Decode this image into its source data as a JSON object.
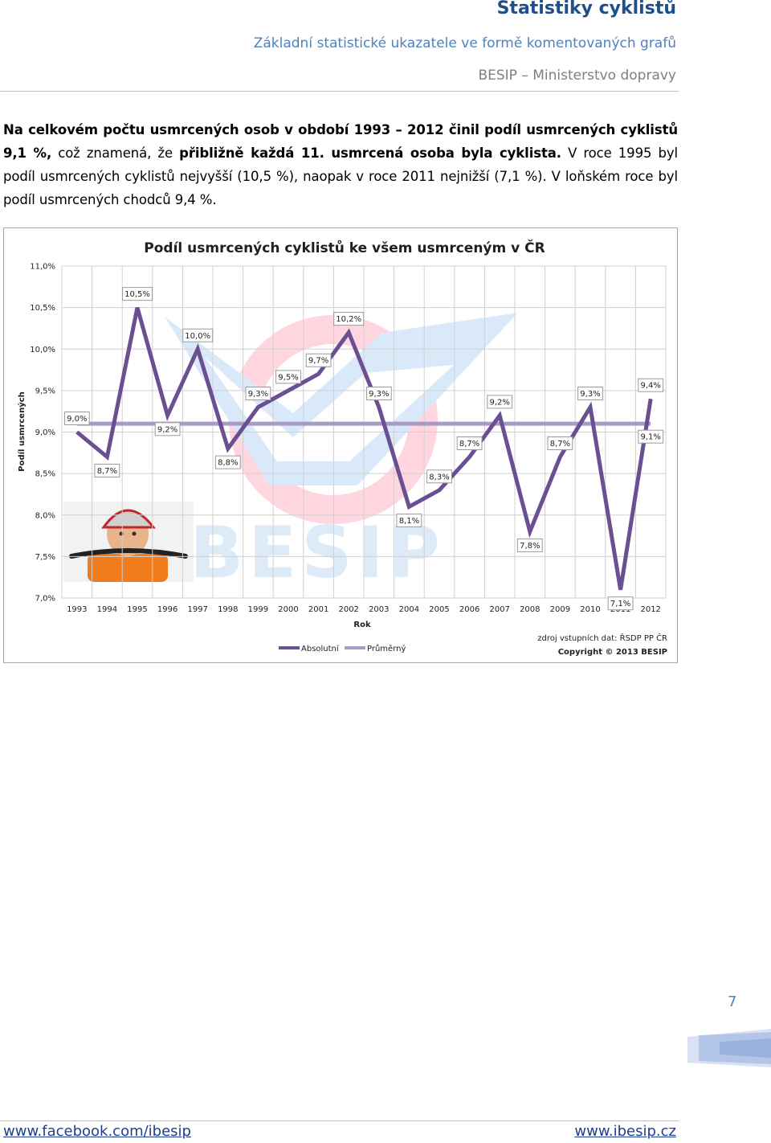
{
  "header": {
    "title": "Statistiky cyklistů",
    "subtitle": "Základní statistické ukazatele ve formě komentovaných grafů",
    "org": "BESIP – Ministerstvo dopravy"
  },
  "intro": {
    "bold_part1": "Na celkovém počtu usmrcených osob v období 1993 – 2012 činil podíl usmrcených cyklistů 9,1 %,",
    "plain_part2": " což znamená, že ",
    "bold_part3": "přibližně každá 11. usmrcená osoba byla cyklista.",
    "plain_part4": " V roce 1995 byl podíl usmrcených cyklistů nejvyšší (10,5 %), naopak v roce 2011 nejnižší (7,1 %). V loňském roce byl podíl usmrcených chodců 9,4 %."
  },
  "chart_data": {
    "type": "line",
    "title": "Podíl usmrcených cyklistů ke všem usmrceným v ČR",
    "xlabel": "Rok",
    "ylabel": "Podíl usmrcených",
    "ylim": [
      7.0,
      11.0
    ],
    "y_ticks": [
      "7,0%",
      "7,5%",
      "8,0%",
      "8,5%",
      "9,0%",
      "9,5%",
      "10,0%",
      "10,5%",
      "11,0%"
    ],
    "grid": true,
    "legend_position": "bottom-left",
    "x": [
      "1993",
      "1994",
      "1995",
      "1996",
      "1997",
      "1998",
      "1999",
      "2000",
      "2001",
      "2002",
      "2003",
      "2004",
      "2005",
      "2006",
      "2007",
      "2008",
      "2009",
      "2010",
      "2011",
      "2012"
    ],
    "series": [
      {
        "name": "Absolutní",
        "color": "#6a4f93",
        "values": [
          9.0,
          8.7,
          10.5,
          9.2,
          10.0,
          8.8,
          9.3,
          9.5,
          9.7,
          10.2,
          9.3,
          8.1,
          8.3,
          8.7,
          9.2,
          7.8,
          8.7,
          9.3,
          7.1,
          9.4
        ],
        "labels": [
          "9,0%",
          "8,7%",
          "10,5%",
          "9,2%",
          "10,0%",
          "8,8%",
          "9,3%",
          "9,5%",
          "9,7%",
          "10,2%",
          "9,3%",
          "8,1%",
          "8,3%",
          "8,7%",
          "9,2%",
          "7,8%",
          "8,7%",
          "9,3%",
          "7,1%",
          "9,4%"
        ]
      },
      {
        "name": "Průměrný",
        "color": "#a79cc5",
        "values": [
          9.1,
          9.1,
          9.1,
          9.1,
          9.1,
          9.1,
          9.1,
          9.1,
          9.1,
          9.1,
          9.1,
          9.1,
          9.1,
          9.1,
          9.1,
          9.1,
          9.1,
          9.1,
          9.1,
          9.1
        ],
        "end_label": "9,1%"
      }
    ],
    "source_note": "zdroj vstupních dat: ŘSDP PP ČR",
    "copyright": "Copyright © 2013  BESIP",
    "watermark_text": "BESIP"
  },
  "page_number": "7",
  "footer": {
    "left_link": "www.facebook.com/ibesip",
    "right_link": "www.ibesip.cz"
  }
}
